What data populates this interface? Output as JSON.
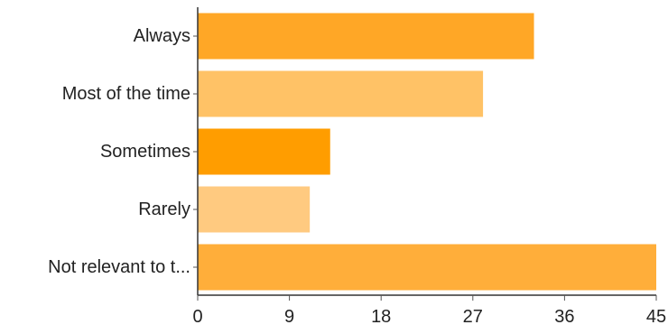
{
  "chart_data": {
    "type": "bar",
    "orientation": "horizontal",
    "title": "",
    "xlabel": "",
    "ylabel": "",
    "categories": [
      "Always",
      "Most of the time",
      "Sometimes",
      "Rarely",
      "Not relevant to t..."
    ],
    "values": [
      33,
      28,
      13,
      11,
      45
    ],
    "colors": [
      "#FFA726",
      "#FFC266",
      "#FF9D00",
      "#FFCA80",
      "#FFAE3A"
    ],
    "xlim": [
      0,
      45
    ],
    "ticks": [
      0,
      9,
      18,
      27,
      36,
      45
    ],
    "tick_labels": [
      "0",
      "9",
      "18",
      "27",
      "36",
      "45"
    ],
    "grid": false,
    "legend": "none"
  }
}
